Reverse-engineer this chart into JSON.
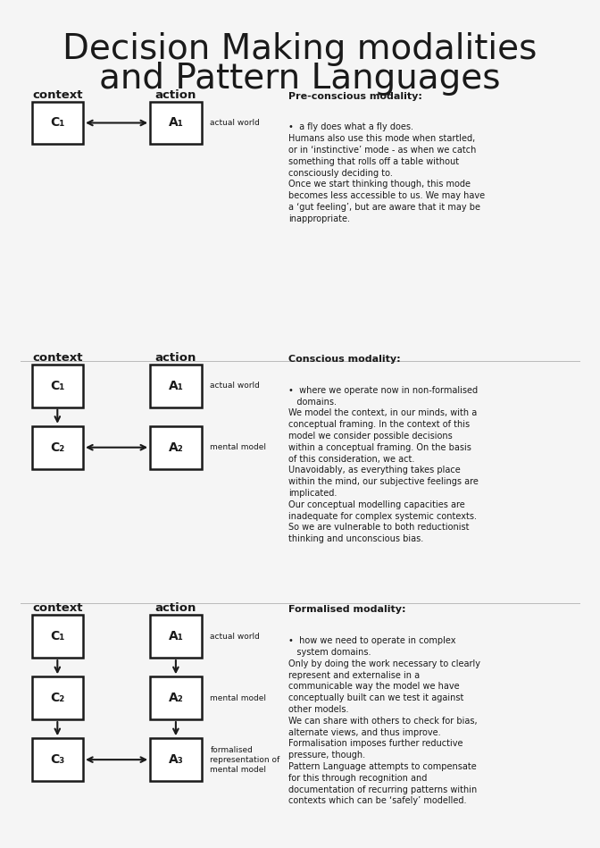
{
  "title_line1": "Decision Making modalities",
  "title_line2": "and Pattern Languages",
  "title_fontsize": 28,
  "bg_color": "#f5f5f5",
  "text_color": "#1a1a1a",
  "box_color": "#ffffff",
  "box_edge_color": "#1a1a1a",
  "divider_color": "#bbbbbb",
  "divider_lines": [
    0.565,
    0.27
  ],
  "section1": {
    "context_label": "context",
    "action_label": "action",
    "diagram": {
      "boxes": [
        {
          "label": "C₁",
          "col": 0,
          "row": 0
        },
        {
          "label": "A₁",
          "col": 1,
          "row": 0
        }
      ],
      "arrows": [
        {
          "from": [
            0,
            0
          ],
          "to": [
            1,
            0
          ],
          "bidirectional": true,
          "direction": "h"
        }
      ],
      "side_labels": [
        {
          "row": 0,
          "text": "actual world"
        }
      ]
    },
    "text_title": "Pre-conscious modality:",
    "text_body": "•  a fly does what a fly does.\nHumans also use this mode when startled,\nor in ‘instinctive’ mode - as when we catch\nsomething that rolls off a table without\nconsciously deciding to.\nOnce we start thinking though, this mode\nbecomes less accessible to us. We may have\na ‘gut feeling’, but are aware that it may be\ninappropriate."
  },
  "section2": {
    "context_label": "context",
    "action_label": "action",
    "diagram": {
      "boxes": [
        {
          "label": "C₁",
          "col": 0,
          "row": 0
        },
        {
          "label": "A₁",
          "col": 1,
          "row": 0
        },
        {
          "label": "C₂",
          "col": 0,
          "row": 1
        },
        {
          "label": "A₂",
          "col": 1,
          "row": 1
        }
      ],
      "arrows": [
        {
          "from": [
            0,
            0
          ],
          "to": [
            0,
            1
          ],
          "bidirectional": false,
          "direction": "v"
        },
        {
          "from": [
            0,
            1
          ],
          "to": [
            1,
            1
          ],
          "bidirectional": true,
          "direction": "h"
        }
      ],
      "side_labels": [
        {
          "row": 0,
          "text": "actual world"
        },
        {
          "row": 1,
          "text": "mental model"
        }
      ]
    },
    "text_title": "Conscious modality:",
    "text_body": "•  where we operate now in non-formalised\n   domains.\nWe model the context, in our minds, with a\nconceptual framing. In the context of this\nmodel we consider possible decisions\nwithin a conceptual framing. On the basis\nof this consideration, we act.\nUnavoidably, as everything takes place\nwithin the mind, our subjective feelings are\nimplicated.\nOur conceptual modelling capacities are\ninadequate for complex systemic contexts.\nSo we are vulnerable to both reductionist\nthinking and unconscious bias."
  },
  "section3": {
    "context_label": "context",
    "action_label": "action",
    "diagram": {
      "boxes": [
        {
          "label": "C₁",
          "col": 0,
          "row": 0
        },
        {
          "label": "A₁",
          "col": 1,
          "row": 0
        },
        {
          "label": "C₂",
          "col": 0,
          "row": 1
        },
        {
          "label": "A₂",
          "col": 1,
          "row": 1
        },
        {
          "label": "C₃",
          "col": 0,
          "row": 2
        },
        {
          "label": "A₃",
          "col": 1,
          "row": 2
        }
      ],
      "arrows": [
        {
          "from": [
            0,
            0
          ],
          "to": [
            0,
            1
          ],
          "bidirectional": false,
          "direction": "v"
        },
        {
          "from": [
            0,
            1
          ],
          "to": [
            0,
            2
          ],
          "bidirectional": false,
          "direction": "v"
        },
        {
          "from": [
            0,
            2
          ],
          "to": [
            1,
            2
          ],
          "bidirectional": true,
          "direction": "h"
        },
        {
          "from": [
            1,
            0
          ],
          "to": [
            1,
            1
          ],
          "bidirectional": false,
          "direction": "v"
        },
        {
          "from": [
            1,
            1
          ],
          "to": [
            1,
            2
          ],
          "bidirectional": false,
          "direction": "v"
        }
      ],
      "side_labels": [
        {
          "row": 0,
          "text": "actual world"
        },
        {
          "row": 1,
          "text": "mental model"
        },
        {
          "row": 2,
          "text": "formalised\nrepresentation of\nmental model"
        }
      ]
    },
    "text_title": "Formalised modality:",
    "text_body": "•  how we need to operate in complex\n   system domains.\nOnly by doing the work necessary to clearly\nrepresent and externalise in a\ncommunicable way the model we have\nconceptually built can we test it against\nother models.\nWe can share with others to check for bias,\nalternate views, and thus improve.\nFormalisation imposes further reductive\npressure, though.\nPattern Language attempts to compensate\nfor this through recognition and\ndocumentation of recurring patterns within\ncontexts which can be ‘safely’ modelled."
  }
}
